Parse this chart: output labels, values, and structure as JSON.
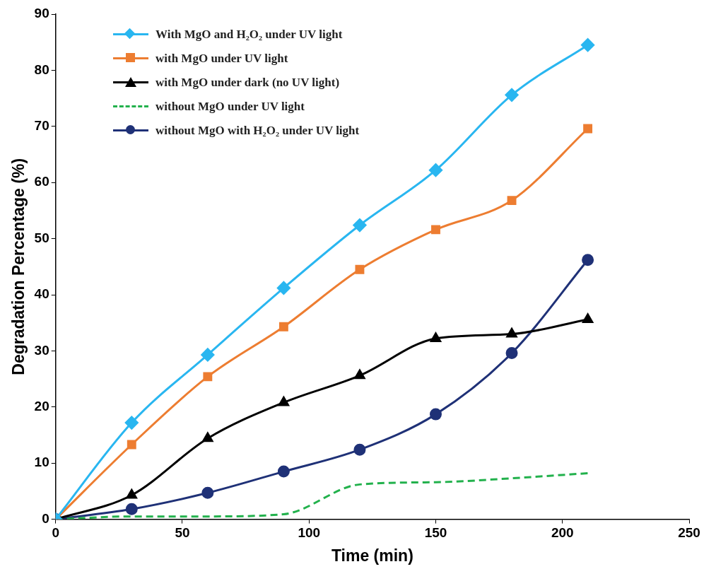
{
  "chart_data": {
    "type": "line",
    "xlabel": "Time (min)",
    "ylabel": "Degradation Percentage (%)",
    "x": [
      0,
      30,
      60,
      90,
      120,
      150,
      180,
      210
    ],
    "xlim": [
      0,
      250
    ],
    "xticks": [
      0,
      50,
      100,
      150,
      200,
      250
    ],
    "ylim": [
      0,
      90
    ],
    "yticks": [
      0,
      10,
      20,
      30,
      40,
      50,
      60,
      70,
      80,
      90
    ],
    "grid": false,
    "legend": "top left",
    "series": [
      {
        "name": "With MgO and H₂O₂ under UV light",
        "color": "#29b6f0",
        "marker": "diamond",
        "line_style": "solid",
        "values": [
          0,
          17.2,
          29.3,
          41.2,
          52.4,
          62.2,
          75.6,
          84.5
        ]
      },
      {
        "name": "with MgO under UV light",
        "color": "#ed7d31",
        "marker": "square",
        "line_style": "solid",
        "values": [
          0,
          13.3,
          25.4,
          34.3,
          44.5,
          51.6,
          56.8,
          69.6
        ]
      },
      {
        "name": "with MgO under dark (no UV light)",
        "color": "#000000",
        "marker": "triangle",
        "line_style": "solid",
        "values": [
          0,
          4.3,
          14.4,
          20.8,
          25.6,
          32.2,
          33.0,
          35.6
        ]
      },
      {
        "name": "without MgO under UV light",
        "color": "#22b14c",
        "marker": "none",
        "line_style": "dashed",
        "values": [
          0,
          0.5,
          0.5,
          0.9,
          6.2,
          6.6,
          7.3,
          8.2
        ]
      },
      {
        "name": "without MgO with H₂O₂ under UV light",
        "color": "#1f3177",
        "marker": "circle",
        "line_style": "solid",
        "values": [
          0,
          1.8,
          4.7,
          8.5,
          12.4,
          18.7,
          29.6,
          46.2
        ]
      }
    ]
  }
}
